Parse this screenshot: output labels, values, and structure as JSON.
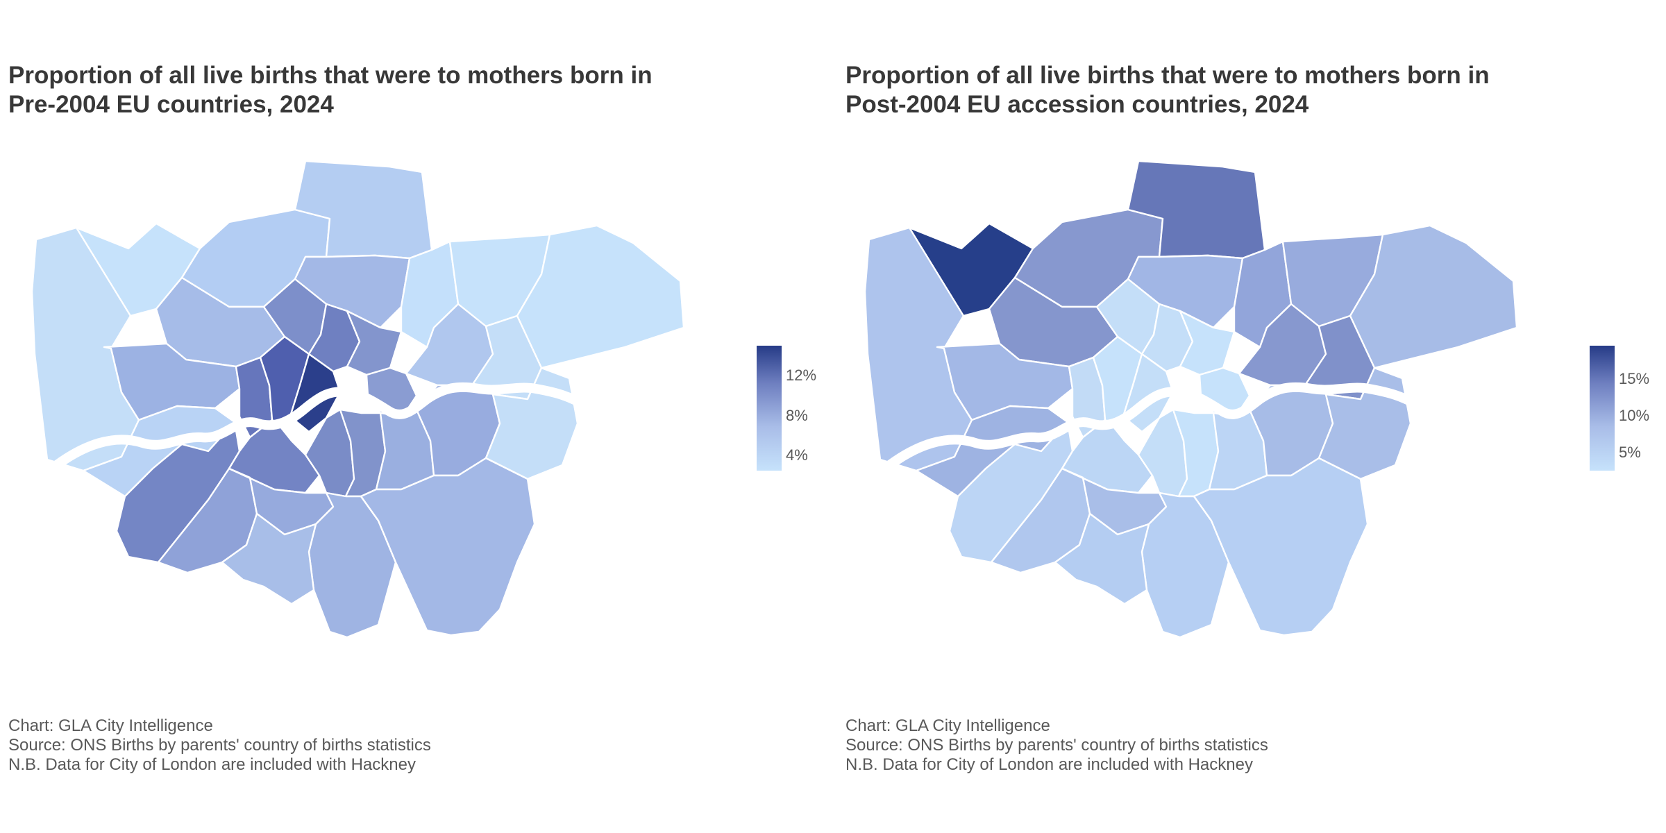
{
  "maps": [
    {
      "title_line1": "Proportion of all live births that were to mothers born in",
      "title_line2": "Pre-2004 EU countries, 2024",
      "legend": {
        "ticks": [
          {
            "label": "12%",
            "value": 12
          },
          {
            "label": "8%",
            "value": 8
          },
          {
            "label": "4%",
            "value": 4
          }
        ],
        "min": 2.5,
        "max": 15
      },
      "colors": {
        "hillingdon": "#c4def8",
        "harrow": "#c6e2fb",
        "barnet": "#b3cdf3",
        "enfield": "#b4cdf2",
        "haringey": "#a3b8e6",
        "waltham-forest": "#c4e0fb",
        "redbridge": "#c6e2fb",
        "havering": "#c6e2fb",
        "brent": "#a6bce8",
        "camden": "#7d8fca",
        "islington": "#6f80c1",
        "hackney": "#8395cd",
        "newham": "#b0c7ee",
        "barking": "#c4def8",
        "ealing": "#9cb2e3",
        "hounslow": "#b9d3f5",
        "hammersmith": "#6676bc",
        "kensington": "#4f5fae",
        "westminster": "#2b3f8b",
        "tower-hamlets": "#8a9cd2",
        "richmond": "#7486c5",
        "wandsworth": "#7384c4",
        "lambeth": "#7a8cc7",
        "southwark": "#8193cb",
        "lewisham": "#9aafe0",
        "greenwich": "#98acdf",
        "bexley": "#c4def8",
        "kingston": "#8fa2d8",
        "merton": "#96aadd",
        "croydon": "#9fb4e3",
        "sutton": "#a8bee8",
        "bromley": "#a3b8e6"
      }
    },
    {
      "title_line1": "Proportion of all live births that were to mothers born in",
      "title_line2": "Post-2004 EU accession countries, 2024",
      "legend": {
        "ticks": [
          {
            "label": "15%",
            "value": 15
          },
          {
            "label": "10%",
            "value": 10
          },
          {
            "label": "5%",
            "value": 5
          }
        ],
        "min": 2.5,
        "max": 19.5
      },
      "colors": {
        "hillingdon": "#aec4ed",
        "harrow": "#263f8a",
        "barnet": "#8798cf",
        "enfield": "#6677b8",
        "haringey": "#a1b6e5",
        "waltham-forest": "#92a5da",
        "redbridge": "#98abdd",
        "havering": "#a7bce7",
        "brent": "#8596cd",
        "camden": "#c4def8",
        "islington": "#c4def8",
        "hackney": "#c6e2fb",
        "newham": "#8798cf",
        "barking": "#8091ca",
        "ealing": "#a3b8e6",
        "hounslow": "#9eb3e2",
        "hammersmith": "#c2dbf6",
        "kensington": "#c6e2fb",
        "westminster": "#c4def8",
        "tower-hamlets": "#c6e2fb",
        "richmond": "#bcd5f5",
        "wandsworth": "#bcd6f5",
        "lambeth": "#c4def8",
        "southwark": "#c6e2fb",
        "lewisham": "#bcd5f5",
        "greenwich": "#a7bce7",
        "bexley": "#a9bee8",
        "kingston": "#b0c7ee",
        "merton": "#a9bee8",
        "croydon": "#b6cff3",
        "sutton": "#b4cdf2",
        "bromley": "#b6cff3"
      }
    }
  ],
  "caption": {
    "line1": "Chart: GLA City Intelligence",
    "line2": "Source: ONS Births by parents' country of births statistics",
    "line3": "N.B. Data for City of London are included with Hackney"
  }
}
